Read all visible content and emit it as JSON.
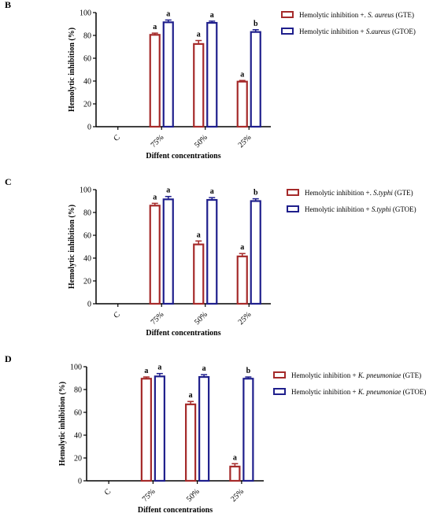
{
  "colors": {
    "gte": "#a52a2a",
    "gtoe": "#1f1f8c",
    "axis": "#000000"
  },
  "chart_data": [
    {
      "type": "bar",
      "panel_label": "B",
      "categories": [
        "C",
        "75%",
        "50%",
        "25%"
      ],
      "xlabel": "Diffent concentrations",
      "ylabel": "Hemolytic inhibition (%)",
      "ylim": [
        0,
        100
      ],
      "yticks": [
        0,
        20,
        40,
        60,
        80,
        100
      ],
      "series": [
        {
          "name_prefix": "Hemolytic inhibition +. ",
          "organism": "S. aureus",
          "name_suffix": " (GTE)",
          "values": [
            0,
            80.5,
            72.5,
            39.5
          ],
          "errors": [
            0,
            1.5,
            3.0,
            1.0
          ],
          "labels": [
            "",
            "a",
            "a",
            "a"
          ]
        },
        {
          "name_prefix": "Hemolytic inhibition + ",
          "organism": "S.aureus",
          "name_suffix": " (GTOE)",
          "values": [
            0,
            91.5,
            91.0,
            83.0
          ],
          "errors": [
            0,
            2.0,
            1.5,
            2.0
          ],
          "labels": [
            "",
            "a",
            "a",
            "b"
          ]
        }
      ]
    },
    {
      "type": "bar",
      "panel_label": "C",
      "categories": [
        "C",
        "75%",
        "50%",
        "25%"
      ],
      "xlabel": "Diffent concentrations",
      "ylabel": "Hemolytic inhibition (%)",
      "ylim": [
        0,
        100
      ],
      "yticks": [
        0,
        20,
        40,
        60,
        80,
        100
      ],
      "series": [
        {
          "name_prefix": "Hemolytic inhibition +. ",
          "organism": "S.typhi",
          "name_suffix": " (GTE)",
          "values": [
            0,
            86.0,
            52.0,
            41.5
          ],
          "errors": [
            0,
            2.0,
            3.0,
            2.5
          ],
          "labels": [
            "",
            "a",
            "a",
            "a"
          ]
        },
        {
          "name_prefix": "Hemolytic inhibition + ",
          "organism": "S.typhi",
          "name_suffix": " (GTOE)",
          "values": [
            0,
            91.5,
            91.0,
            90.0
          ],
          "errors": [
            0,
            2.5,
            2.0,
            2.0
          ],
          "labels": [
            "",
            "a",
            "a",
            "b"
          ]
        }
      ]
    },
    {
      "type": "bar",
      "panel_label": "D",
      "categories": [
        "C",
        "75%",
        "50%",
        "25%"
      ],
      "xlabel": "Diffent concentrations",
      "ylabel": "Hemolytic inhibition (%)",
      "ylim": [
        0,
        100
      ],
      "yticks": [
        0,
        20,
        40,
        60,
        80,
        100
      ],
      "series": [
        {
          "name_prefix": "Hemolytic inhibition + ",
          "organism": "K. pneumoniae",
          "name_suffix": " (GTE)",
          "values": [
            0,
            89.5,
            67.0,
            12.5
          ],
          "errors": [
            0,
            1.5,
            2.5,
            2.5
          ],
          "labels": [
            "",
            "a",
            "a",
            "a"
          ]
        },
        {
          "name_prefix": "Hemolytic inhibition + ",
          "organism": "K. pneumoniae",
          "name_suffix": " (GTOE)",
          "values": [
            0,
            91.5,
            91.0,
            89.5
          ],
          "errors": [
            0,
            2.5,
            2.0,
            1.5
          ],
          "labels": [
            "",
            "a",
            "a",
            "b"
          ]
        }
      ]
    }
  ]
}
